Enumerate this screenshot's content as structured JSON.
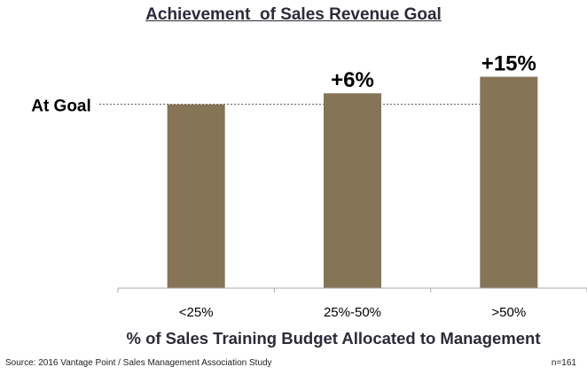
{
  "chart_data": {
    "type": "bar",
    "title": "Achievement  of Sales Revenue Goal",
    "xlabel": "% of Sales Training Budget Allocated to Management",
    "ylabel": "",
    "categories": [
      "<25%",
      "25%-50%",
      ">50%"
    ],
    "values": [
      100,
      106,
      115
    ],
    "data_labels": [
      "",
      "+6%",
      "+15%"
    ],
    "reference_line": {
      "label": "At Goal",
      "value": 100,
      "style": "dotted"
    },
    "ylim": [
      0,
      123
    ],
    "bar_color": "#857456",
    "grid": false,
    "legend": "none"
  },
  "footer": {
    "source": "Source: 2016  Vantage Point / Sales Management Association Study",
    "n": "n=161"
  }
}
